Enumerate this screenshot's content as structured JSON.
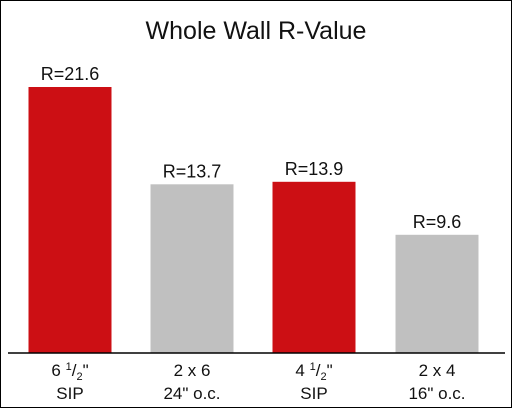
{
  "chart_data": {
    "type": "bar",
    "title": "Whole Wall R-Value",
    "categories": [
      {
        "line1": "6 1/2\"",
        "line2": "SIP",
        "whole": "6",
        "num": "1",
        "den": "2",
        "mark": "\""
      },
      {
        "line1": "2 x 6",
        "line2": "24\" o.c."
      },
      {
        "line1": "4 1/2\"",
        "line2": "SIP",
        "whole": "4",
        "num": "1",
        "den": "2",
        "mark": "\""
      },
      {
        "line1": "2 x 4",
        "line2": "16\" o.c."
      }
    ],
    "values": [
      21.6,
      13.7,
      13.9,
      9.6
    ],
    "data_labels": [
      "R=21.6",
      "R=13.7",
      "R=13.9",
      "R=9.6"
    ],
    "bar_colors": [
      "#cc0f14",
      "#c0c0c0",
      "#cc0f14",
      "#c0c0c0"
    ],
    "ylim": [
      0,
      27.2
    ],
    "grid": false,
    "legend": "none",
    "xlabel": "",
    "ylabel": ""
  }
}
